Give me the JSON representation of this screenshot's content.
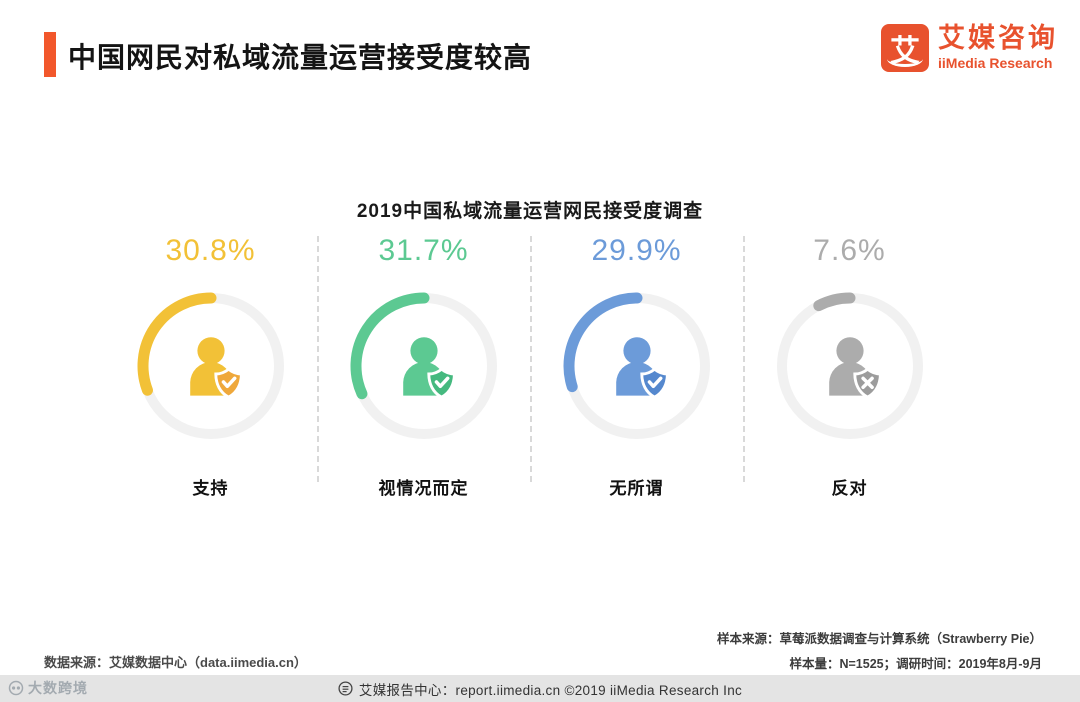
{
  "header": {
    "title": "中国网民对私域流量运营接受度较高",
    "logo": {
      "mark": "艾",
      "brand_cn": "艾媒咨询",
      "brand_en": "iiMedia Research"
    }
  },
  "chart_data": {
    "type": "donut",
    "title": "2019中国私域流量运营网民接受度调查",
    "categories": [
      "支持",
      "视情况而定",
      "无所谓",
      "反对"
    ],
    "values": [
      30.8,
      31.7,
      29.9,
      7.6
    ],
    "unit": "%",
    "track_color": "#f1f1f1",
    "items": [
      {
        "label": "支持",
        "value": 30.8,
        "display": "30.8%",
        "color": "#F2C137",
        "badge_color": "#EFA83B",
        "badge": "check"
      },
      {
        "label": "视情况而定",
        "value": 31.7,
        "display": "31.7%",
        "color": "#5CC992",
        "badge_color": "#45B97F",
        "badge": "check"
      },
      {
        "label": "无所谓",
        "value": 29.9,
        "display": "29.9%",
        "color": "#6C9BD9",
        "badge_color": "#5588CE",
        "badge": "check"
      },
      {
        "label": "反对",
        "value": 7.6,
        "display": "7.6%",
        "color": "#ACACAC",
        "badge_color": "#9C9C9C",
        "badge": "cross"
      }
    ]
  },
  "footnotes": {
    "source_left": "数据来源：艾媒数据中心（data.iimedia.cn）",
    "sample_source": "样本来源：草莓派数据调查与计算系统（Strawberry Pie）",
    "sample_size": "样本量：N=1525；调研时间：2019年8月-9月"
  },
  "footer": {
    "text": "艾媒报告中心：report.iimedia.cn ©2019  iiMedia Research Inc"
  },
  "watermark": "大数跨境"
}
